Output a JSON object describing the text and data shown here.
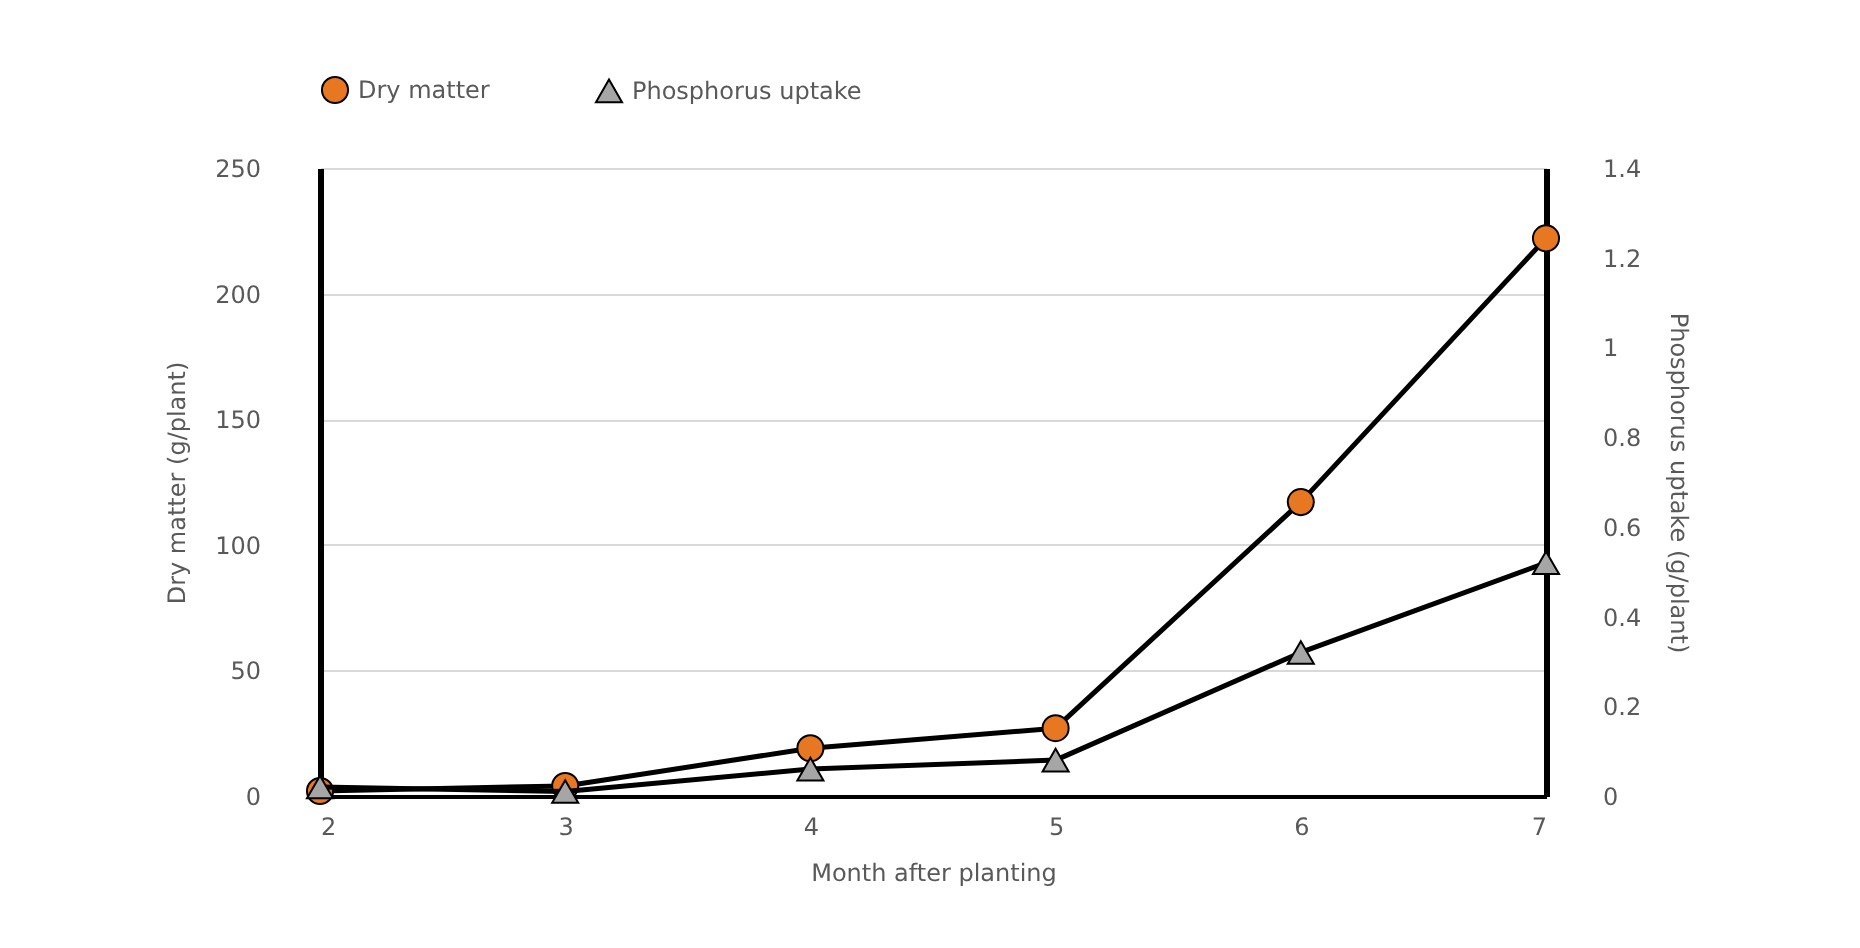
{
  "chart_data": {
    "type": "line",
    "xlabel": "Month after planting",
    "ylabel": "Dry matter (g/plant)",
    "y2label": "Phosphorus uptake (g/plant)",
    "x": [
      2,
      3,
      4,
      5,
      6,
      7
    ],
    "xlim": [
      2,
      7
    ],
    "xticks": [
      2,
      3,
      4,
      5,
      6,
      7
    ],
    "ylim": [
      0,
      250
    ],
    "yticks": [
      0,
      50,
      100,
      150,
      200,
      250
    ],
    "y2lim": [
      0,
      1.4
    ],
    "y2ticks": [
      0,
      0.2,
      0.4,
      0.6,
      0.8,
      1,
      1.2,
      1.4
    ],
    "grid": "y",
    "legend": "top",
    "series": [
      {
        "name": "Dry matter",
        "color": "#e87722",
        "marker": "circle",
        "values": [
          2,
          4,
          19,
          27,
          117,
          222
        ]
      },
      {
        "name": "Phosphorus uptake",
        "color": "#a6a6a6",
        "marker": "triangle",
        "axis": "y2",
        "values": [
          0.02,
          0.01,
          0.06,
          0.08,
          0.32,
          0.52
        ]
      }
    ]
  }
}
